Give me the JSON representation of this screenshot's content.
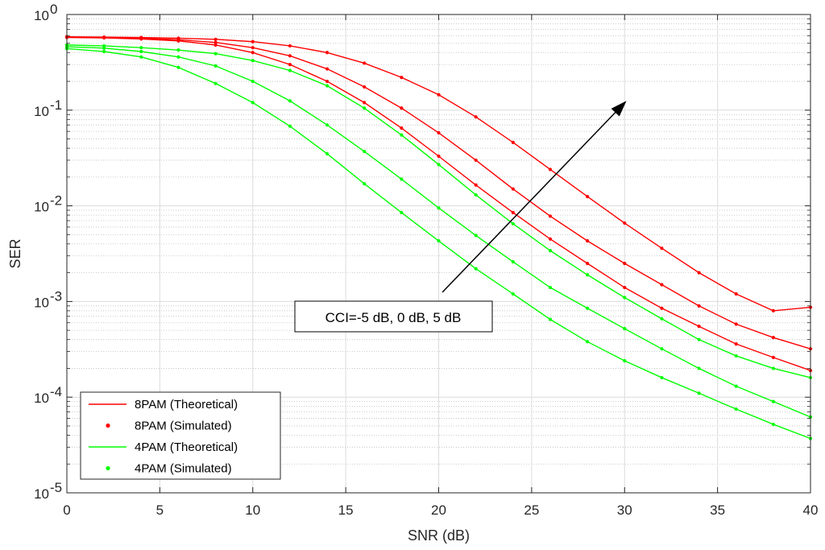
{
  "chart_data": {
    "type": "line",
    "xlabel": "SNR (dB)",
    "ylabel": "SER",
    "xlim": [
      0,
      40
    ],
    "ylim": [
      1e-05,
      1
    ],
    "yscale": "log",
    "grid": true,
    "minor_grid": true,
    "legend_position": "bottom-left",
    "x_ticks": [
      "0",
      "5",
      "10",
      "15",
      "20",
      "25",
      "30",
      "35",
      "40"
    ],
    "y_ticks": [
      {
        "value": 1e-05,
        "base": "10",
        "exp": "-5"
      },
      {
        "value": 0.0001,
        "base": "10",
        "exp": "-4"
      },
      {
        "value": 0.001,
        "base": "10",
        "exp": "-3"
      },
      {
        "value": 0.01,
        "base": "10",
        "exp": "-2"
      },
      {
        "value": 0.1,
        "base": "10",
        "exp": "-1"
      },
      {
        "value": 1,
        "base": "10",
        "exp": "0"
      }
    ],
    "legend": [
      {
        "label": "8PAM (Theoretical)",
        "style": "line",
        "color": "#ff0000"
      },
      {
        "label": "8PAM (Simulated)",
        "style": "marker",
        "color": "#ff0000"
      },
      {
        "label": "4PAM (Theoretical)",
        "style": "line",
        "color": "#00ff00"
      },
      {
        "label": "4PAM (Simulated)",
        "style": "marker",
        "color": "#00ff00"
      }
    ],
    "annotation": {
      "text": "CCI=-5 dB, 0 dB, 5 dB",
      "arrow_from": [
        20.2,
        0.00125
      ],
      "arrow_to": [
        30.1,
        0.125
      ]
    },
    "x": [
      0,
      2,
      4,
      6,
      8,
      10,
      12,
      14,
      16,
      18,
      20,
      22,
      24,
      26,
      28,
      30,
      32,
      34,
      36,
      38,
      40
    ],
    "series": [
      {
        "group": "8PAM",
        "color": "#ff0000",
        "values": [
          0.575,
          0.57,
          0.555,
          0.53,
          0.48,
          0.4,
          0.3,
          0.2,
          0.12,
          0.065,
          0.033,
          0.0165,
          0.0085,
          0.0045,
          0.0025,
          0.0014,
          0.00085,
          0.00055,
          0.00036,
          0.00026,
          0.00019
        ]
      },
      {
        "group": "8PAM",
        "color": "#ff0000",
        "values": [
          0.58,
          0.575,
          0.565,
          0.545,
          0.51,
          0.45,
          0.37,
          0.27,
          0.175,
          0.105,
          0.058,
          0.03,
          0.015,
          0.0078,
          0.0043,
          0.0025,
          0.0015,
          0.0009,
          0.00058,
          0.00042,
          0.00032
        ]
      },
      {
        "group": "8PAM",
        "color": "#ff0000",
        "values": [
          0.585,
          0.58,
          0.575,
          0.565,
          0.55,
          0.52,
          0.47,
          0.4,
          0.31,
          0.22,
          0.145,
          0.085,
          0.046,
          0.024,
          0.0125,
          0.0066,
          0.0036,
          0.002,
          0.0012,
          0.0008,
          0.00087
        ]
      },
      {
        "group": "4PAM",
        "color": "#00ff00",
        "values": [
          0.44,
          0.41,
          0.36,
          0.28,
          0.19,
          0.12,
          0.068,
          0.035,
          0.017,
          0.0085,
          0.0043,
          0.0022,
          0.0012,
          0.00065,
          0.00038,
          0.00024,
          0.00016,
          0.00011,
          7.5e-05,
          5.2e-05,
          3.7e-05
        ]
      },
      {
        "group": "4PAM",
        "color": "#00ff00",
        "values": [
          0.46,
          0.445,
          0.41,
          0.36,
          0.29,
          0.2,
          0.125,
          0.07,
          0.037,
          0.019,
          0.0095,
          0.0049,
          0.0026,
          0.0014,
          0.00085,
          0.00052,
          0.00032,
          0.0002,
          0.00013,
          9e-05,
          6.2e-05
        ]
      },
      {
        "group": "4PAM",
        "color": "#00ff00",
        "values": [
          0.48,
          0.47,
          0.45,
          0.425,
          0.39,
          0.33,
          0.26,
          0.18,
          0.105,
          0.055,
          0.027,
          0.013,
          0.0065,
          0.0034,
          0.0019,
          0.0011,
          0.00066,
          0.0004,
          0.00027,
          0.0002,
          0.00016
        ]
      }
    ]
  }
}
